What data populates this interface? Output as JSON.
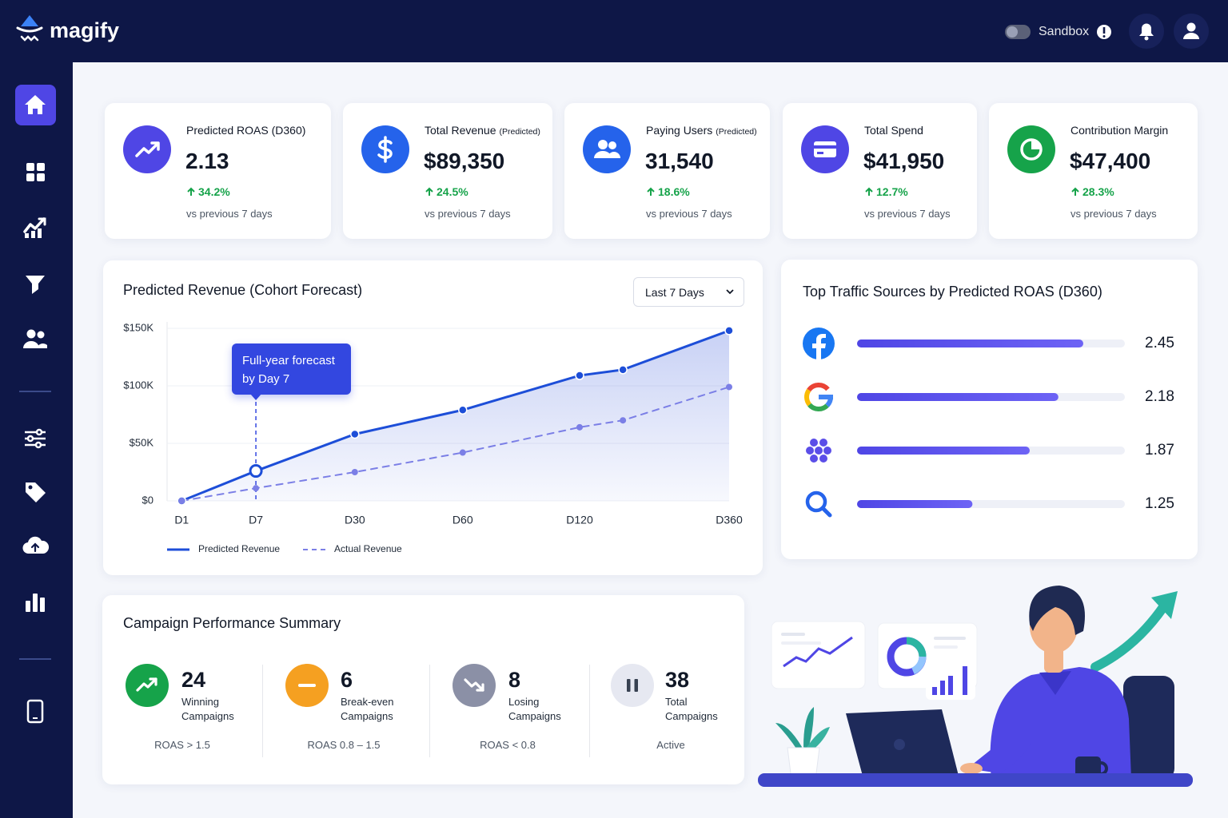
{
  "header": {
    "brand": "magify",
    "toggle_label": "Sandbox"
  },
  "kpis": [
    {
      "title": "Predicted ROAS (D360)",
      "value": "2.13",
      "change": "34.2%",
      "note": "vs previous 7 days"
    },
    {
      "title": "Total Revenue",
      "tag": "(Predicted)",
      "value": "$89,350",
      "change": "24.5%",
      "note": "vs previous 7 days"
    },
    {
      "title": "Paying Users",
      "tag": "(Predicted)",
      "value": "31,540",
      "change": "18.6%",
      "note": "vs previous 7 days"
    },
    {
      "title": "Total Spend",
      "value": "$41,950",
      "change": "12.7%",
      "note": "vs previous 7 days"
    },
    {
      "title": "Contribution Margin",
      "value": "$47,400",
      "change": "28.3%",
      "note": "vs previous 7 days"
    }
  ],
  "chart_data": [
    {
      "type": "line",
      "title": "Predicted Revenue (Cohort Forecast)",
      "period": "Last 7 Days",
      "annotation": "Full-year forecast by Day 7",
      "categories": [
        "D1",
        "D7",
        "D30",
        "D60",
        "D120",
        null,
        "D360"
      ],
      "series": [
        {
          "name": "Predicted Revenue",
          "color": "#1d4ed8",
          "values": [
            0,
            26000,
            58000,
            79000,
            109000,
            114000,
            148000
          ]
        },
        {
          "name": "Actual Revenue",
          "color": "#7b7fe6",
          "dashed": true,
          "values": [
            0,
            11000,
            25000,
            42000,
            64000,
            70000,
            99000
          ]
        }
      ],
      "ylim": [
        0,
        150000
      ],
      "yticks": [
        {
          "value": 0,
          "label": "$0"
        },
        {
          "value": 50000,
          "label": "$50K"
        },
        {
          "value": 100000,
          "label": "$100K"
        },
        {
          "value": 150000,
          "label": "$150K"
        }
      ],
      "grid": true
    },
    {
      "type": "bar",
      "orientation": "horizontal",
      "title": "Top Traffic Sources by Predicted ROAS (D360)",
      "categories": [
        null,
        null,
        null,
        null
      ],
      "values": [
        2.45,
        2.18,
        1.87,
        1.25
      ],
      "color": "#4f46e5",
      "xlim": [
        0,
        2.9
      ]
    }
  ],
  "campaigns": {
    "title": "Campaign Performance Summary",
    "items": [
      {
        "value": 24,
        "label": "Winning Campaigns",
        "note": "ROAS > 1.5"
      },
      {
        "value": 6,
        "label": "Break-even Campaigns",
        "note": "ROAS 0.8 – 1.5"
      },
      {
        "value": 8,
        "label": "Losing Campaigns",
        "note": "ROAS < 0.8"
      },
      {
        "value": 38,
        "label": "Total Campaigns",
        "note": "Active"
      }
    ]
  }
}
